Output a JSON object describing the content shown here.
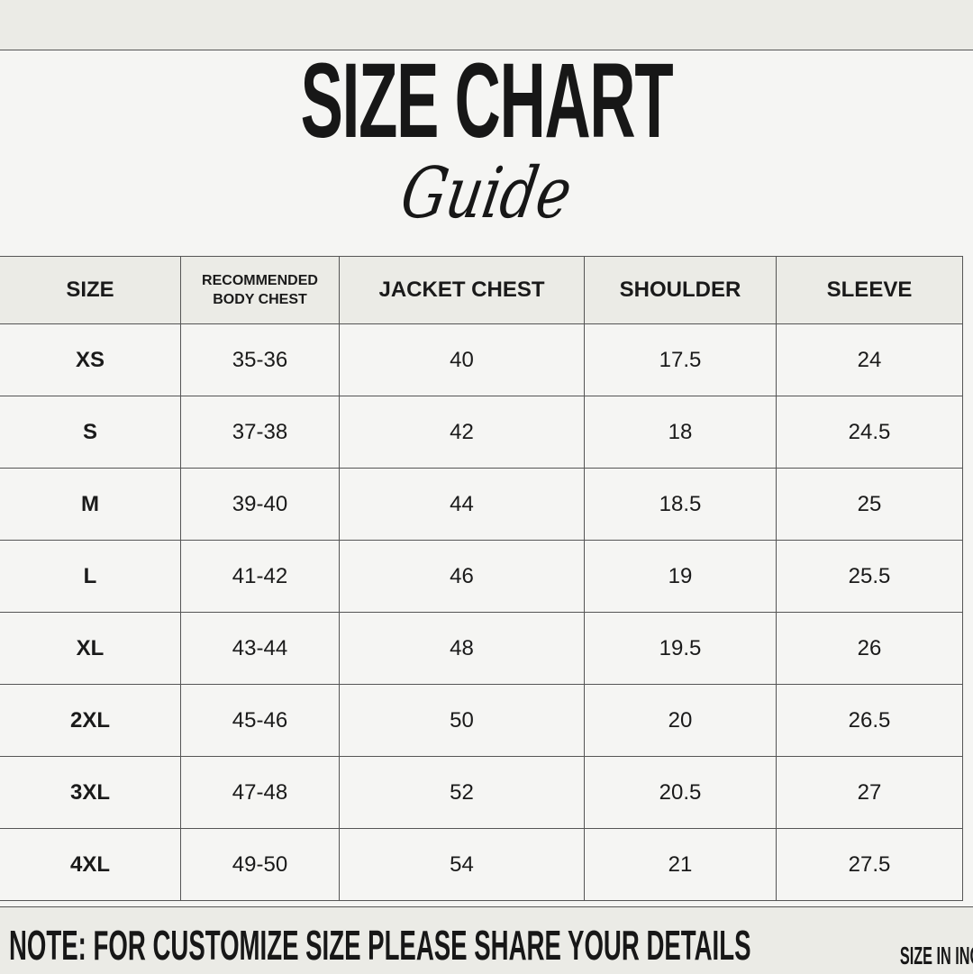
{
  "title": "SIZE CHART",
  "subtitle": "Guide",
  "table": {
    "headers": [
      "SIZE",
      "RECOMMENDED BODY CHEST",
      "JACKET CHEST",
      "SHOULDER",
      "SLEEVE"
    ],
    "rows": [
      [
        "XS",
        "35-36",
        "40",
        "17.5",
        "24"
      ],
      [
        "S",
        "37-38",
        "42",
        "18",
        "24.5"
      ],
      [
        "M",
        "39-40",
        "44",
        "18.5",
        "25"
      ],
      [
        "L",
        "41-42",
        "46",
        "19",
        "25.5"
      ],
      [
        "XL",
        "43-44",
        "48",
        "19.5",
        "26"
      ],
      [
        "2XL",
        "45-46",
        "50",
        "20",
        "26.5"
      ],
      [
        "3XL",
        "47-48",
        "52",
        "20.5",
        "27"
      ],
      [
        "4XL",
        "49-50",
        "54",
        "21",
        "27.5"
      ]
    ]
  },
  "footer": {
    "note": "NOTE: FOR CUSTOMIZE SIZE PLEASE SHARE YOUR DETAILS",
    "units": "SIZE IN INCHES"
  },
  "colors": {
    "band": "#ebebe6",
    "background": "#f5f5f3",
    "text": "#171717"
  }
}
